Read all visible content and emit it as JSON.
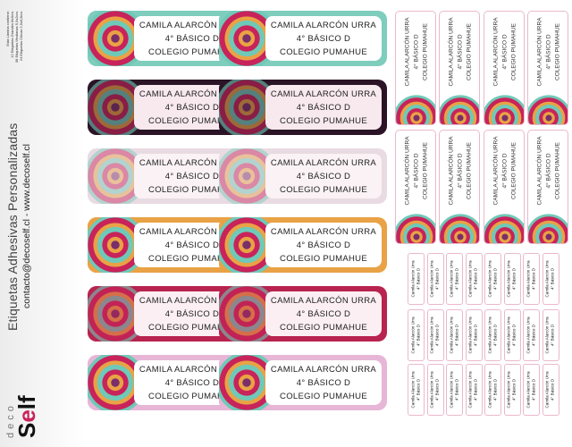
{
  "sidebar": {
    "contents": [
      "Esta Lámina contiene:",
      "12 Etiquetas Grandes 8x3cm.",
      "08 Etiquetas Medianas 5,5x2cm.",
      "24 Etiquetas Chicas 2,5x0,8cm."
    ],
    "title": "Etiquetas Adhesivas Personalizadas",
    "contact": "contacto@decoself.cl - www.decoself.cl",
    "logo_deco": "deco",
    "logo_self": "Self"
  },
  "label_large": {
    "line1": "CAMILA ALARCÓN URRA",
    "line2": "4° BÁSICO D",
    "line3": "COLEGIO PUMAHUE"
  },
  "label_medium": {
    "line1": "CAMILA ALARCÓN URRA",
    "line2": "4° BÁSICO D",
    "line3": "COLEGIO PUMAHUE"
  },
  "label_small": {
    "line1": "Camila Alarcón Urra",
    "line2": "4° Básico D"
  },
  "colors": {
    "large_rows": [
      "#7ecdbd",
      "#2b1426",
      "#e9dbe2",
      "#e9a245",
      "#b8234f",
      "#e7b6d6"
    ],
    "card_rows": [
      "#ffffff",
      "#f7e9ee",
      "#faf2f4",
      "#ffffff",
      "#fbeff3",
      "#ffffff"
    ],
    "mandala": [
      "#c8235a",
      "#6fc9b8",
      "#e9a245",
      "#7a2e6a"
    ],
    "small_border": "#eab9cd"
  }
}
